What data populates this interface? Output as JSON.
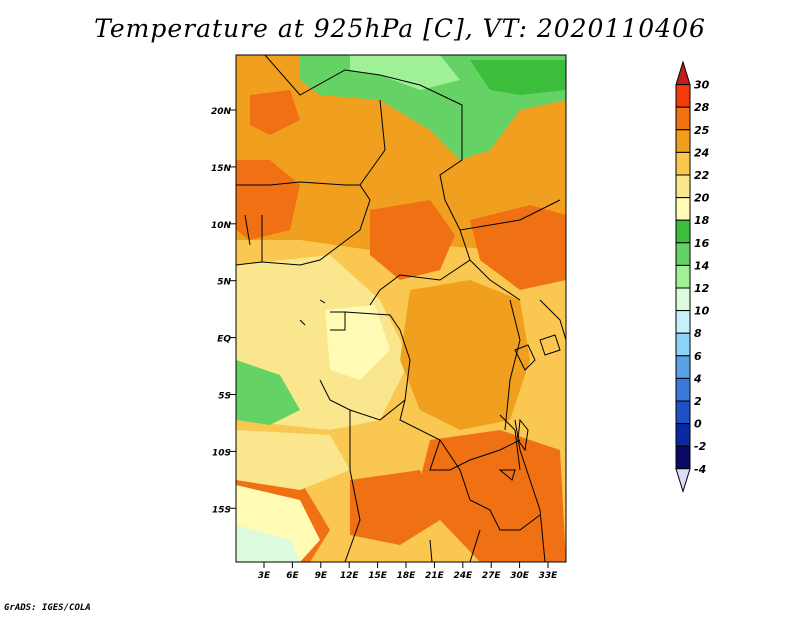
{
  "title": "Temperature at 925hPa [C], VT: 2020110406",
  "credit": "GrADS: IGES/COLA",
  "map": {
    "y_ticks": [
      "20N",
      "15N",
      "10N",
      "5N",
      "EQ",
      "5S",
      "10S",
      "15S"
    ],
    "x_ticks": [
      "3E",
      "6E",
      "9E",
      "12E",
      "15E",
      "18E",
      "21E",
      "24E",
      "27E",
      "30E",
      "33E"
    ]
  },
  "legend": {
    "labels": [
      "30",
      "28",
      "25",
      "24",
      "22",
      "20",
      "18",
      "16",
      "14",
      "12",
      "10",
      "8",
      "6",
      "4",
      "2",
      "0",
      "-2",
      "-4"
    ],
    "colors": [
      "#c01e1e",
      "#f03c0a",
      "#f07014",
      "#f0a01e",
      "#fac850",
      "#fae68c",
      "#fffab4",
      "#3cbe3c",
      "#64d264",
      "#a0f096",
      "#dcfadc",
      "#c8f0fa",
      "#8cd2f5",
      "#5aa0e6",
      "#3c78dc",
      "#1e50c8",
      "#0a28a0",
      "#0a0a64",
      "#dcdcf5"
    ]
  }
}
